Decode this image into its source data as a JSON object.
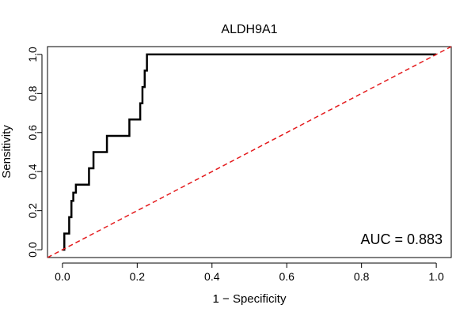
{
  "chart_data": {
    "type": "line",
    "title": "ALDH9A1",
    "xlabel": "1 − Specificity",
    "ylabel": "Sensitivity",
    "xlim": [
      -0.04,
      1.04
    ],
    "ylim": [
      -0.04,
      1.04
    ],
    "xticks": [
      0.0,
      0.2,
      0.4,
      0.6,
      0.8,
      1.0
    ],
    "xtick_labels": [
      "0.0",
      "0.2",
      "0.4",
      "0.6",
      "0.8",
      "1.0"
    ],
    "yticks": [
      0.0,
      0.2,
      0.4,
      0.6,
      0.8,
      1.0
    ],
    "ytick_labels": [
      "0.0",
      "0.2",
      "0.4",
      "0.6",
      "0.8",
      "1.0"
    ],
    "grid": false,
    "annotation": "AUC = 0.883",
    "series": [
      {
        "name": "ROC",
        "color": "#000000",
        "style": "solid",
        "x": [
          0.0,
          0.005,
          0.005,
          0.018,
          0.018,
          0.024,
          0.024,
          0.029,
          0.029,
          0.036,
          0.036,
          0.071,
          0.071,
          0.083,
          0.083,
          0.119,
          0.119,
          0.179,
          0.179,
          0.208,
          0.208,
          0.214,
          0.214,
          0.22,
          0.22,
          0.226,
          0.226,
          1.0
        ],
        "y": [
          0.0,
          0.0,
          0.083,
          0.083,
          0.167,
          0.167,
          0.25,
          0.25,
          0.292,
          0.292,
          0.333,
          0.333,
          0.417,
          0.417,
          0.5,
          0.5,
          0.583,
          0.583,
          0.667,
          0.667,
          0.75,
          0.75,
          0.833,
          0.833,
          0.917,
          0.917,
          1.0,
          1.0
        ]
      },
      {
        "name": "reference",
        "color": "#e41a1c",
        "style": "dashed",
        "x": [
          -0.04,
          1.04
        ],
        "y": [
          -0.04,
          1.04
        ]
      }
    ]
  }
}
